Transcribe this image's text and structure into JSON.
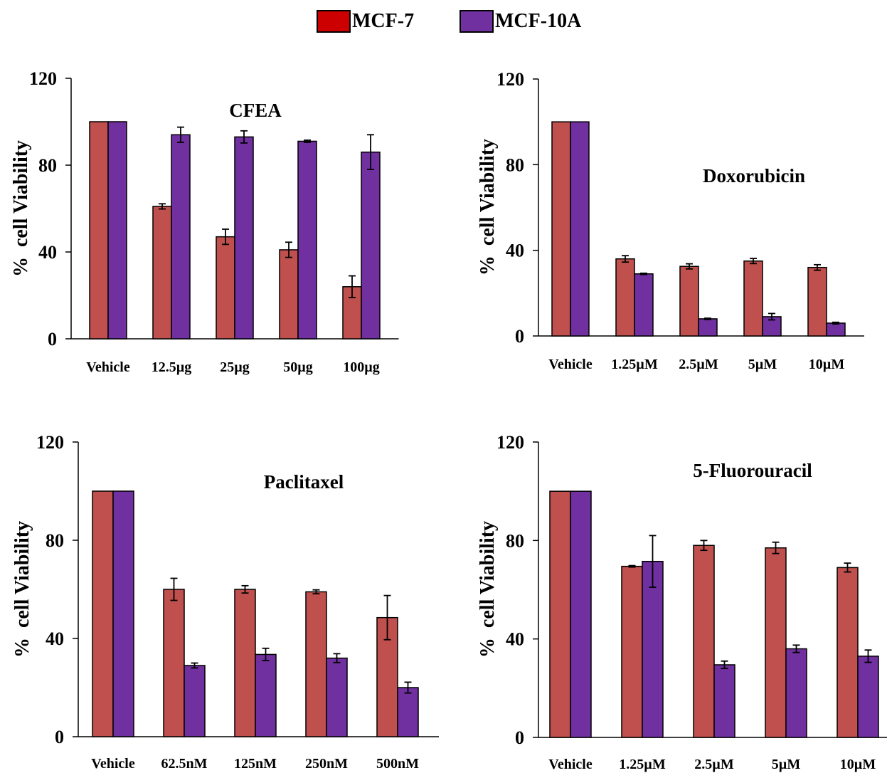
{
  "legend": {
    "items": [
      {
        "label": "MCF-7",
        "color": "#cc0000"
      },
      {
        "label": "MCF-10A",
        "color": "#7030a0"
      }
    ]
  },
  "colors": {
    "bar_mcf7": "#c0504d",
    "bar_mcf10a": "#7030a0",
    "edge": "#000000"
  },
  "chart_data": [
    {
      "type": "bar",
      "title": "CFEA",
      "ylabel": "%  cell Viability",
      "xlabel": "",
      "ylim": [
        0,
        120
      ],
      "yticks": [
        0,
        40,
        80,
        120
      ],
      "categories": [
        "Vehicle",
        "12.5µg",
        "25µg",
        "50µg",
        "100µg"
      ],
      "series": [
        {
          "name": "MCF-7",
          "values": [
            100,
            61,
            47,
            41,
            24
          ],
          "errors": [
            0,
            1.2,
            3.5,
            3.5,
            5
          ]
        },
        {
          "name": "MCF-10A",
          "values": [
            100,
            94,
            93,
            91,
            86
          ],
          "errors": [
            0,
            3.5,
            2.8,
            0.5,
            8
          ]
        }
      ]
    },
    {
      "type": "bar",
      "title": "Doxorubicin",
      "ylabel": "%  cell Viability",
      "xlabel": "",
      "ylim": [
        0,
        120
      ],
      "yticks": [
        0,
        40,
        80,
        120
      ],
      "categories": [
        "Vehicle",
        "1.25µM",
        "2.5µM",
        "5µM",
        "10µM"
      ],
      "series": [
        {
          "name": "MCF-7",
          "values": [
            100,
            36,
            32.5,
            35,
            32
          ],
          "errors": [
            0,
            1.5,
            1.2,
            1.2,
            1.3
          ]
        },
        {
          "name": "MCF-10A",
          "values": [
            100,
            29,
            8,
            9,
            6
          ],
          "errors": [
            0,
            0.3,
            0.3,
            1.5,
            0.4
          ]
        }
      ]
    },
    {
      "type": "bar",
      "title": "Paclitaxel",
      "ylabel": "%  cell Viability",
      "xlabel": "",
      "ylim": [
        0,
        120
      ],
      "yticks": [
        0,
        40,
        80,
        120
      ],
      "categories": [
        "Vehicle",
        "62.5nM",
        "125nM",
        "250nM",
        "500nM"
      ],
      "series": [
        {
          "name": "MCF-7",
          "values": [
            100,
            60,
            60,
            59,
            48.5
          ],
          "errors": [
            0,
            4.5,
            1.5,
            0.8,
            9
          ]
        },
        {
          "name": "MCF-10A",
          "values": [
            100,
            29,
            33.5,
            32,
            20
          ],
          "errors": [
            0,
            1,
            2.5,
            1.8,
            2.2
          ]
        }
      ]
    },
    {
      "type": "bar",
      "title": "5-Fluorouracil",
      "ylabel": "%  cell Viability",
      "xlabel": "",
      "ylim": [
        0,
        120
      ],
      "yticks": [
        0,
        40,
        80,
        120
      ],
      "categories": [
        "Vehicle",
        "1.25µM",
        "2.5µM",
        "5µM",
        "10µM"
      ],
      "series": [
        {
          "name": "MCF-7",
          "values": [
            100,
            69.5,
            78,
            77,
            69
          ],
          "errors": [
            0,
            0.3,
            2,
            2.3,
            1.8
          ]
        },
        {
          "name": "MCF-10A",
          "values": [
            100,
            71.5,
            29.5,
            36,
            33
          ],
          "errors": [
            0,
            10.5,
            1.5,
            1.5,
            2.5
          ]
        }
      ]
    }
  ]
}
